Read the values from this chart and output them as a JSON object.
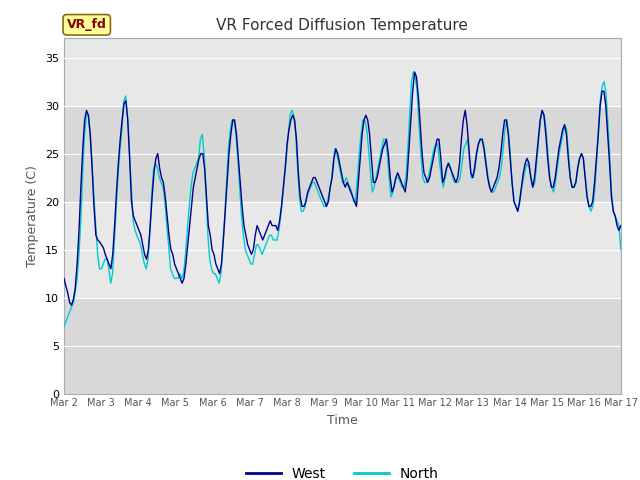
{
  "title": "VR Forced Diffusion Temperature",
  "xlabel": "Time",
  "ylabel": "Temperature (C)",
  "ylim": [
    0,
    37
  ],
  "yticks": [
    0,
    5,
    10,
    15,
    20,
    25,
    30,
    35
  ],
  "bg_color": "#d8d8d8",
  "band_color_light": "#e8e8e8",
  "west_color": "#00008B",
  "north_color": "#00CCCC",
  "label_box_text": "VR_fd",
  "label_box_bg": "#FFFF99",
  "label_box_fg": "#8B0000",
  "legend_west": "West",
  "legend_north": "North",
  "west_data": [
    12.0,
    11.2,
    10.5,
    9.5,
    9.2,
    9.8,
    11.0,
    13.5,
    17.0,
    21.5,
    25.5,
    28.5,
    29.5,
    29.0,
    27.0,
    23.5,
    19.5,
    16.5,
    16.0,
    15.8,
    15.5,
    15.2,
    14.5,
    14.0,
    13.5,
    13.0,
    14.5,
    17.5,
    21.0,
    24.0,
    26.5,
    28.5,
    30.2,
    30.5,
    28.5,
    24.5,
    20.0,
    18.5,
    18.0,
    17.5,
    17.0,
    16.5,
    15.5,
    14.5,
    14.0,
    15.0,
    17.5,
    20.5,
    23.0,
    24.5,
    25.0,
    23.5,
    22.5,
    22.0,
    20.5,
    18.5,
    16.5,
    15.0,
    14.5,
    13.5,
    13.0,
    12.5,
    12.0,
    11.5,
    12.0,
    13.5,
    15.5,
    17.5,
    19.5,
    21.5,
    22.5,
    23.5,
    24.5,
    25.0,
    25.0,
    23.5,
    20.5,
    17.5,
    16.5,
    15.0,
    14.5,
    13.5,
    13.0,
    12.5,
    13.5,
    16.0,
    19.0,
    22.0,
    25.0,
    27.0,
    28.5,
    28.5,
    27.0,
    24.5,
    22.0,
    19.5,
    17.5,
    16.5,
    15.5,
    15.0,
    14.5,
    15.0,
    16.5,
    17.5,
    17.0,
    16.5,
    16.0,
    16.5,
    17.0,
    17.5,
    18.0,
    17.5,
    17.5,
    17.5,
    17.0,
    18.0,
    19.5,
    21.5,
    23.5,
    26.0,
    27.5,
    28.5,
    29.0,
    28.5,
    26.5,
    23.0,
    20.5,
    19.5,
    19.5,
    20.0,
    21.0,
    21.5,
    22.0,
    22.5,
    22.5,
    22.0,
    21.5,
    21.0,
    20.5,
    20.0,
    19.5,
    20.0,
    21.5,
    22.5,
    24.5,
    25.5,
    25.0,
    24.0,
    23.0,
    22.0,
    21.5,
    22.0,
    21.5,
    21.0,
    20.5,
    20.0,
    19.5,
    22.0,
    24.5,
    27.0,
    28.5,
    29.0,
    28.5,
    27.0,
    24.5,
    22.0,
    22.0,
    22.5,
    23.5,
    24.5,
    25.5,
    26.0,
    26.5,
    25.0,
    22.5,
    21.0,
    21.5,
    22.5,
    23.0,
    22.5,
    22.0,
    21.5,
    21.0,
    22.5,
    25.5,
    28.5,
    31.5,
    33.5,
    33.0,
    31.0,
    28.0,
    25.0,
    23.0,
    22.5,
    22.0,
    22.5,
    23.5,
    24.5,
    25.5,
    26.5,
    26.5,
    24.5,
    22.0,
    22.5,
    23.5,
    24.0,
    23.5,
    23.0,
    22.5,
    22.0,
    22.5,
    24.0,
    26.5,
    28.5,
    29.5,
    28.0,
    25.5,
    23.0,
    22.5,
    23.5,
    25.0,
    26.0,
    26.5,
    26.5,
    25.5,
    24.0,
    22.5,
    21.5,
    21.0,
    21.5,
    22.0,
    22.5,
    23.5,
    25.0,
    27.0,
    28.5,
    28.5,
    27.0,
    24.5,
    22.0,
    20.0,
    19.5,
    19.0,
    20.0,
    21.5,
    23.0,
    24.0,
    24.5,
    24.0,
    22.5,
    21.5,
    22.5,
    24.5,
    26.5,
    28.5,
    29.5,
    29.0,
    27.0,
    24.5,
    22.5,
    21.5,
    21.5,
    22.5,
    24.0,
    25.5,
    26.5,
    27.5,
    28.0,
    27.0,
    24.5,
    22.5,
    21.5,
    21.5,
    22.0,
    23.5,
    24.5,
    25.0,
    24.5,
    22.5,
    20.5,
    19.5,
    19.5,
    20.0,
    22.0,
    24.5,
    27.0,
    30.0,
    31.5,
    31.5,
    30.0,
    27.0,
    24.0,
    20.5,
    19.0,
    18.5,
    17.5,
    17.0,
    17.5
  ],
  "north_data": [
    7.0,
    7.5,
    8.0,
    8.5,
    9.0,
    9.5,
    10.5,
    12.0,
    14.5,
    18.0,
    23.0,
    27.0,
    29.0,
    29.0,
    27.0,
    24.0,
    20.5,
    17.5,
    14.5,
    13.0,
    13.0,
    13.5,
    14.0,
    14.0,
    13.0,
    11.5,
    12.5,
    16.0,
    19.5,
    23.0,
    25.5,
    27.5,
    30.5,
    31.0,
    29.0,
    25.5,
    21.5,
    18.0,
    17.0,
    16.5,
    16.0,
    15.5,
    14.5,
    13.5,
    13.0,
    14.0,
    17.0,
    21.0,
    23.5,
    24.0,
    23.5,
    22.5,
    22.0,
    21.5,
    20.0,
    17.5,
    15.5,
    13.0,
    12.5,
    12.0,
    12.0,
    12.0,
    12.5,
    12.0,
    12.5,
    14.5,
    17.0,
    19.5,
    21.5,
    23.0,
    23.5,
    24.0,
    24.5,
    26.5,
    27.0,
    25.0,
    21.0,
    16.5,
    14.0,
    13.0,
    12.5,
    12.5,
    12.0,
    11.5,
    12.5,
    15.5,
    18.5,
    22.0,
    25.5,
    27.5,
    28.5,
    28.5,
    27.0,
    24.5,
    21.5,
    18.5,
    16.5,
    15.0,
    14.5,
    14.0,
    13.5,
    13.5,
    14.5,
    15.5,
    15.5,
    15.0,
    14.5,
    15.0,
    15.5,
    16.0,
    16.5,
    16.5,
    16.0,
    16.0,
    16.0,
    17.0,
    18.5,
    20.5,
    22.5,
    24.5,
    27.0,
    29.0,
    29.5,
    29.0,
    27.0,
    23.5,
    20.5,
    19.0,
    19.0,
    19.5,
    20.5,
    21.0,
    21.5,
    22.0,
    22.0,
    21.5,
    21.0,
    20.5,
    20.0,
    19.5,
    19.5,
    20.0,
    21.0,
    22.0,
    24.0,
    25.5,
    25.0,
    24.0,
    23.0,
    22.0,
    22.0,
    22.5,
    22.0,
    21.5,
    21.0,
    20.0,
    20.0,
    22.5,
    25.0,
    27.0,
    28.5,
    28.5,
    27.5,
    25.5,
    23.0,
    21.0,
    21.5,
    22.5,
    23.5,
    24.5,
    25.5,
    26.5,
    26.5,
    25.0,
    22.5,
    20.5,
    21.0,
    22.0,
    22.5,
    22.5,
    22.0,
    21.5,
    21.5,
    22.5,
    25.5,
    29.0,
    32.5,
    33.5,
    33.0,
    31.5,
    28.0,
    25.0,
    22.5,
    22.0,
    22.0,
    22.5,
    23.5,
    24.5,
    25.5,
    26.0,
    26.0,
    24.0,
    22.5,
    21.5,
    22.5,
    23.5,
    24.0,
    23.5,
    22.5,
    22.0,
    22.0,
    22.0,
    22.5,
    24.0,
    25.5,
    26.0,
    26.5,
    24.5,
    22.5,
    22.5,
    23.5,
    25.0,
    26.0,
    26.5,
    26.5,
    25.5,
    24.0,
    22.5,
    21.5,
    21.0,
    21.0,
    21.5,
    22.0,
    22.5,
    23.5,
    25.5,
    27.5,
    28.5,
    27.0,
    24.5,
    21.5,
    20.0,
    19.5,
    19.0,
    20.0,
    21.5,
    22.5,
    23.5,
    24.0,
    23.5,
    22.5,
    21.5,
    22.0,
    24.0,
    26.5,
    28.5,
    29.5,
    29.0,
    27.5,
    25.0,
    22.5,
    21.5,
    21.0,
    22.0,
    23.5,
    25.0,
    26.0,
    27.0,
    28.0,
    27.5,
    25.0,
    22.5,
    21.5,
    21.5,
    22.0,
    23.5,
    24.5,
    25.0,
    24.5,
    22.5,
    20.5,
    19.5,
    19.0,
    19.5,
    21.0,
    24.0,
    27.5,
    30.5,
    32.0,
    32.5,
    31.5,
    28.5,
    25.0,
    21.0,
    19.0,
    18.5,
    18.0,
    17.5,
    15.0
  ]
}
